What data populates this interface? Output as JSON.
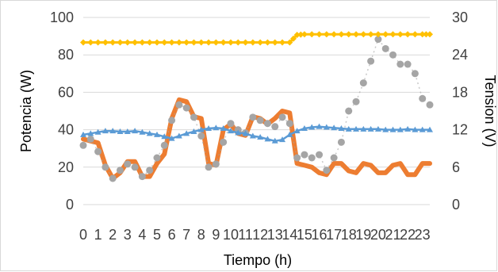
{
  "chart_data": {
    "type": "line",
    "title": "",
    "xlabel": "Tiempo (h)",
    "ylabel": "Potencia (W)",
    "y2label": "Tension (V)",
    "x_tick_labels": [
      "0",
      "1",
      "2",
      "3",
      "4",
      "5",
      "6",
      "7",
      "8",
      "9",
      "10",
      "11",
      "12",
      "13",
      "14",
      "15",
      "16",
      "17",
      "18",
      "19",
      "20",
      "21",
      "22",
      "23"
    ],
    "xlim": [
      0,
      23.5
    ],
    "ylim": [
      0,
      100
    ],
    "y2lim": [
      0,
      30
    ],
    "y_ticks": [
      "0",
      "20",
      "40",
      "60",
      "80",
      "100"
    ],
    "y2_ticks": [
      "0",
      "6",
      "12",
      "18",
      "24",
      "30"
    ],
    "grid": "horizontal",
    "legend": "none",
    "series": [
      {
        "axis": "left",
        "color": "#ED7D31",
        "marker": "none",
        "x": [
          0,
          0.5,
          1,
          1.5,
          2,
          2.5,
          3,
          3.5,
          4,
          4.5,
          5,
          5.5,
          6,
          6.5,
          7,
          7.5,
          8,
          8.5,
          9,
          9.5,
          10,
          10.5,
          11,
          11.5,
          12,
          12.5,
          13,
          13.5,
          14,
          14.5,
          15,
          15.5,
          16,
          16.5,
          17,
          17.5,
          18,
          18.5,
          19,
          19.5,
          20,
          20.5,
          21,
          21.5,
          22,
          22.5,
          23,
          23.5
        ],
        "values": [
          35,
          34,
          33,
          21,
          14,
          17,
          23,
          23,
          15,
          15,
          22,
          27,
          46,
          56,
          55,
          47,
          46,
          22,
          21,
          40,
          43,
          38,
          37,
          47,
          46,
          43,
          46,
          50,
          49,
          22,
          21,
          20,
          17,
          16,
          22,
          22,
          18,
          17,
          22,
          21,
          17,
          17,
          21,
          22,
          16,
          16,
          22,
          22
        ]
      },
      {
        "axis": "right",
        "color": "#A5A5A5",
        "marker": "circle",
        "x": [
          0,
          0.5,
          1,
          1.5,
          2,
          2.5,
          3,
          3.5,
          4,
          4.5,
          5,
          5.5,
          6,
          6.5,
          7,
          7.5,
          8,
          8.5,
          9,
          9.5,
          10,
          10.5,
          11,
          11.5,
          12,
          12.5,
          13,
          13.5,
          14,
          14.5,
          15,
          15.5,
          16,
          16.5,
          17,
          17.5,
          18,
          18.5,
          19,
          19.5,
          20,
          20.5,
          21,
          21.5,
          22,
          22.5,
          23,
          23.5
        ],
        "values": [
          9.5,
          10.5,
          8.5,
          6,
          4.2,
          5.5,
          6.5,
          6,
          4.5,
          5.5,
          7.5,
          9.5,
          13.5,
          16,
          15.5,
          14,
          11,
          6,
          6.5,
          10,
          13,
          12,
          11.5,
          14,
          13.5,
          13,
          12.5,
          14,
          13,
          7.5,
          8,
          7.5,
          8,
          5.5,
          7.5,
          10,
          15,
          16.5,
          19.5,
          23,
          26.5,
          25,
          24,
          22.5,
          22.5,
          21,
          17,
          16
        ]
      },
      {
        "axis": "right",
        "color": "#FFC000",
        "marker": "diamond",
        "x": [
          0,
          1,
          2,
          3,
          4,
          5,
          6,
          7,
          8,
          9,
          10,
          11,
          12,
          13,
          14,
          14.5,
          15,
          16,
          17,
          18,
          19,
          20,
          21,
          22,
          23,
          23.5
        ],
        "values": [
          26,
          26,
          26,
          26,
          26,
          26,
          26,
          26,
          26,
          26,
          26,
          26,
          26,
          26,
          26,
          27.2,
          27.3,
          27.3,
          27.3,
          27.3,
          27.3,
          27.3,
          27.3,
          27.3,
          27.3,
          27.3
        ]
      },
      {
        "axis": "right",
        "color": "#5B9BD5",
        "marker": "triangle",
        "x": [
          0,
          0.5,
          1,
          1.5,
          2,
          2.5,
          3,
          3.5,
          4,
          4.5,
          5,
          5.5,
          6,
          6.5,
          7,
          7.5,
          8,
          8.5,
          9,
          9.5,
          10,
          10.5,
          11,
          11.5,
          12,
          12.5,
          13,
          13.5,
          14,
          14.5,
          15,
          15.5,
          16,
          16.5,
          17,
          17.5,
          18,
          18.5,
          19,
          19.5,
          20,
          20.5,
          21,
          21.5,
          22,
          22.5,
          23,
          23.5
        ],
        "values": [
          11.2,
          11.4,
          11.6,
          11.8,
          11.8,
          11.7,
          11.7,
          11.8,
          11.6,
          11.4,
          11.2,
          10.9,
          10.6,
          11.0,
          11.4,
          11.7,
          12.0,
          12.2,
          12.3,
          12.2,
          11.8,
          11.5,
          11.4,
          11.0,
          10.8,
          10.5,
          10.2,
          10.4,
          11.2,
          11.8,
          12.2,
          12.4,
          12.5,
          12.4,
          12.3,
          12.2,
          12.1,
          12.1,
          12.1,
          12.1,
          12.1,
          12.0,
          12.0,
          12.0,
          12.1,
          12.0,
          12.0,
          12.0
        ]
      }
    ]
  }
}
